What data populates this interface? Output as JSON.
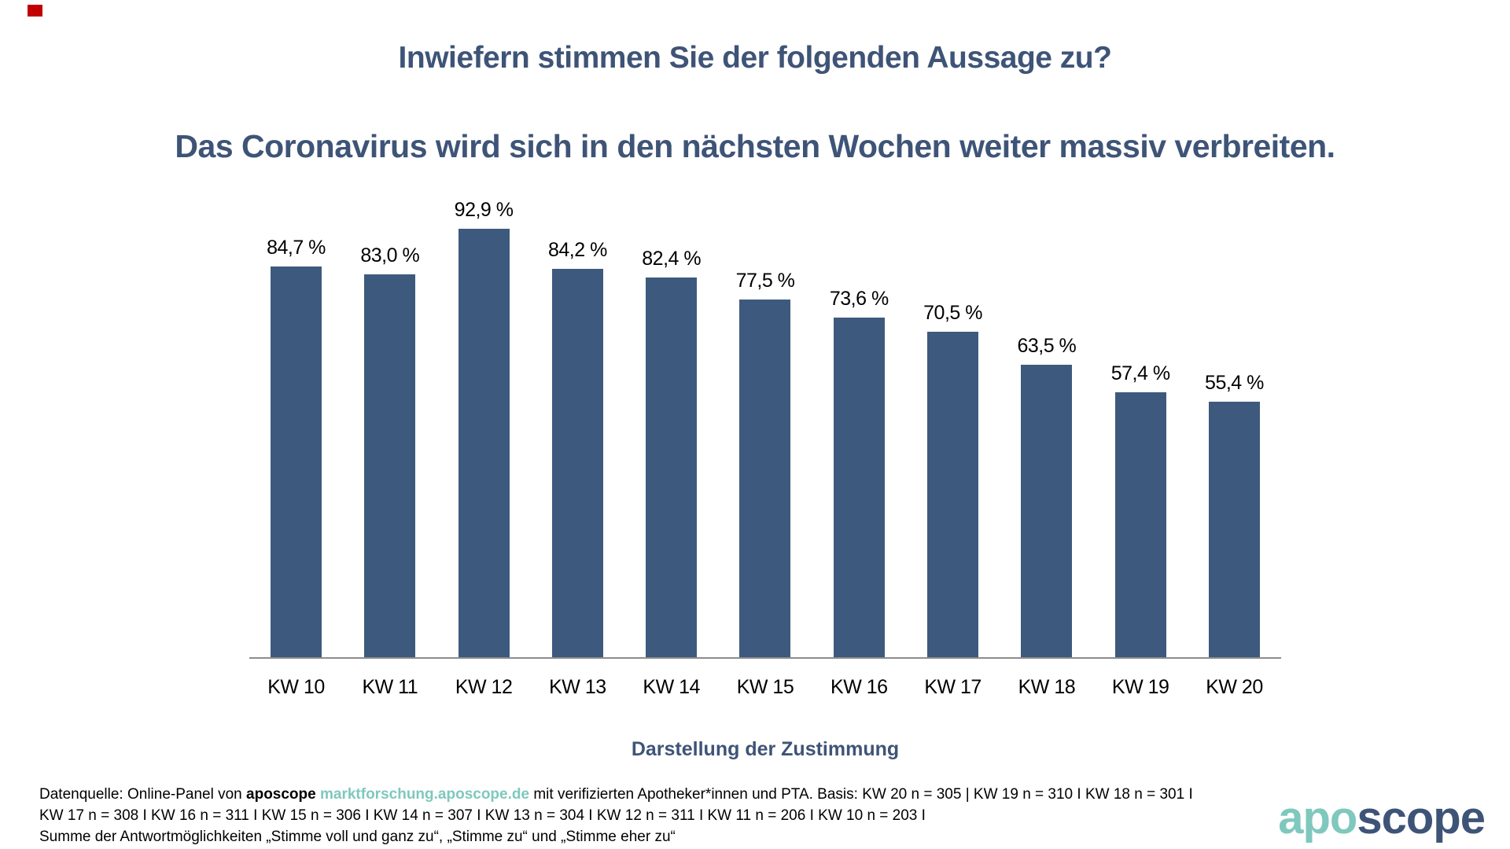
{
  "title": "Inwiefern stimmen Sie der folgenden Aussage zu?",
  "subtitle": "Das Coronavirus wird sich in den nächsten Wochen weiter massiv verbreiten.",
  "chart_data": {
    "type": "bar",
    "categories": [
      "KW 10",
      "KW 11",
      "KW 12",
      "KW 13",
      "KW 14",
      "KW 15",
      "KW 16",
      "KW 17",
      "KW 18",
      "KW 19",
      "KW 20"
    ],
    "values": [
      84.7,
      83.0,
      92.9,
      84.2,
      82.4,
      77.5,
      73.6,
      70.5,
      63.5,
      57.4,
      55.4
    ],
    "value_labels": [
      "84,7 %",
      "83,0 %",
      "92,9 %",
      "84,2 %",
      "82,4 %",
      "77,5 %",
      "73,6 %",
      "70,5 %",
      "63,5 %",
      "57,4 %",
      "55,4 %"
    ],
    "title": "Inwiefern stimmen Sie der folgenden Aussage zu? Das Coronavirus wird sich in den nächsten Wochen weiter massiv verbreiten.",
    "xlabel": "Darstellung der Zustimmung",
    "ylabel": "",
    "ylim": [
      0,
      100
    ],
    "grid": false,
    "legend": null,
    "bar_color": "#3D5A7E"
  },
  "footer": {
    "line1": [
      {
        "text": "Datenquelle: Online-Panel von ",
        "style": "regular"
      },
      {
        "text": "aposcope",
        "style": "bold"
      },
      {
        "text": " ",
        "style": "regular"
      },
      {
        "text": "marktforschung.aposcope.de",
        "style": "link"
      },
      {
        "text": " mit verifizierten Apotheker*innen und PTA. Basis: KW 20 n = 305 | KW 19 n = 310 I KW 18 n = 301 I",
        "style": "regular"
      }
    ],
    "line2": "KW 17 n = 308 I KW 16 n = 311 I KW 15 n = 306 I KW 14 n = 307 I KW 13 n = 304 I KW 12 n = 311 I KW 11 n = 206 I KW 10 n = 203 I",
    "line3": "Summe der Antwortmöglichkeiten „Stimme voll und ganz zu“, „Stimme zu“ und „Stimme eher zu“"
  },
  "logo": {
    "apo": "apo",
    "scope": "scope"
  },
  "colors": {
    "title_blue": "#3E5477",
    "bar_blue": "#3D5A7E",
    "teal": "#7FC8BE",
    "red_marker": "#C00000",
    "axis_gray": "#8C8C8C"
  }
}
